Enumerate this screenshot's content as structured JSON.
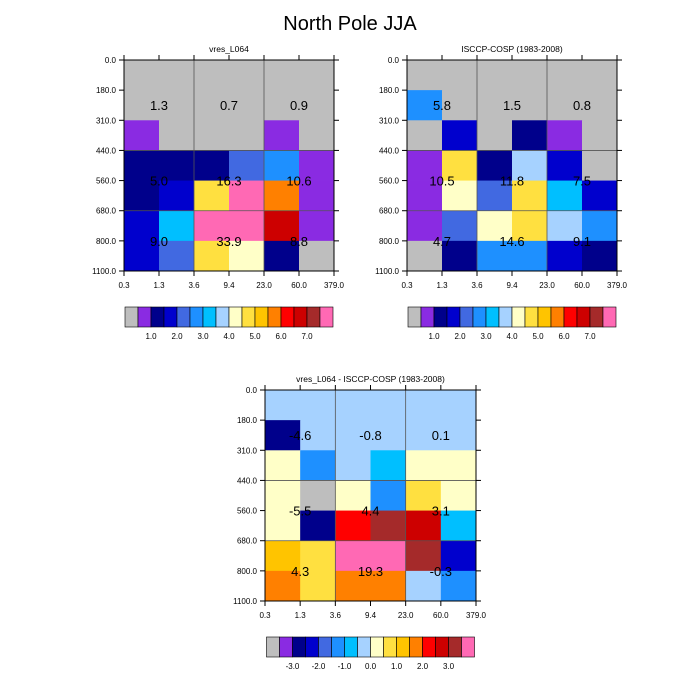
{
  "figure_title": "North Pole JJA",
  "x_ticks": [
    "0.3",
    "1.3",
    "3.6",
    "9.4",
    "23.0",
    "60.0",
    "379.0"
  ],
  "y_ticks": [
    "0.0",
    "180.0",
    "310.0",
    "440.0",
    "560.0",
    "680.0",
    "800.0",
    "1100.0"
  ],
  "palette_abs": [
    "#bebebe",
    "#8a2be2",
    "#00008b",
    "#0000cd",
    "#4169e1",
    "#1e90ff",
    "#00bfff",
    "#a6d2ff",
    "#ffffc8",
    "#ffe040",
    "#ffc400",
    "#ff8000",
    "#ff0000",
    "#cd0000",
    "#a52a2a",
    "#ff69b4"
  ],
  "palette_diff": [
    "#bebebe",
    "#8a2be2",
    "#00008b",
    "#0000cd",
    "#4169e1",
    "#1e90ff",
    "#00bfff",
    "#a6d2ff",
    "#ffffc8",
    "#ffe040",
    "#ffc400",
    "#ff8000",
    "#ff0000",
    "#cd0000",
    "#a52a2a",
    "#ff69b4"
  ],
  "legend_abs_labels": [
    "1.0",
    "2.0",
    "3.0",
    "4.0",
    "5.0",
    "6.0",
    "7.0"
  ],
  "legend_diff_labels": [
    "-3.0",
    "-2.0",
    "-1.0",
    "0.0",
    "1.0",
    "2.0",
    "3.0"
  ],
  "chart_data": [
    {
      "type": "heatmap",
      "title": "vres_L064",
      "xlabel": "",
      "ylabel": "",
      "x_bins": [
        "0.3",
        "1.3",
        "3.6",
        "9.4",
        "23.0",
        "60.0",
        "379.0"
      ],
      "y_bins": [
        "0.0",
        "180.0",
        "310.0",
        "440.0",
        "560.0",
        "680.0",
        "800.0",
        "1100.0"
      ],
      "cells": [
        [
          "#bebebe",
          "#bebebe",
          "#bebebe",
          "#bebebe",
          "#bebebe",
          "#bebebe"
        ],
        [
          "#bebebe",
          "#bebebe",
          "#bebebe",
          "#bebebe",
          "#bebebe",
          "#bebebe"
        ],
        [
          "#8a2be2",
          "#bebebe",
          "#bebebe",
          "#bebebe",
          "#8a2be2",
          "#bebebe"
        ],
        [
          "#00008b",
          "#00008b",
          "#00008b",
          "#4169e1",
          "#1e90ff",
          "#8a2be2"
        ],
        [
          "#00008b",
          "#0000cd",
          "#ffe040",
          "#ff69b4",
          "#ff8000",
          "#8a2be2"
        ],
        [
          "#0000cd",
          "#00bfff",
          "#ff69b4",
          "#ff69b4",
          "#cd0000",
          "#8a2be2"
        ],
        [
          "#0000cd",
          "#4169e1",
          "#ffe040",
          "#ffffc8",
          "#00008b",
          "#bebebe"
        ]
      ],
      "group_values": [
        [
          "1.3",
          "0.7",
          "0.9"
        ],
        [
          "5.0",
          "16.3",
          "10.6"
        ],
        [
          "9.0",
          "33.9",
          "8.8"
        ]
      ]
    },
    {
      "type": "heatmap",
      "title": "ISCCP-COSP (1983-2008)",
      "xlabel": "",
      "ylabel": "",
      "x_bins": [
        "0.3",
        "1.3",
        "3.6",
        "9.4",
        "23.0",
        "60.0",
        "379.0"
      ],
      "y_bins": [
        "0.0",
        "180.0",
        "310.0",
        "440.0",
        "560.0",
        "680.0",
        "800.0",
        "1100.0"
      ],
      "cells": [
        [
          "#bebebe",
          "#bebebe",
          "#bebebe",
          "#bebebe",
          "#bebebe",
          "#bebebe"
        ],
        [
          "#1e90ff",
          "#bebebe",
          "#bebebe",
          "#bebebe",
          "#bebebe",
          "#bebebe"
        ],
        [
          "#bebebe",
          "#0000cd",
          "#bebebe",
          "#00008b",
          "#8a2be2",
          "#bebebe"
        ],
        [
          "#8a2be2",
          "#ffe040",
          "#00008b",
          "#a6d2ff",
          "#0000cd",
          "#bebebe"
        ],
        [
          "#8a2be2",
          "#ffffc8",
          "#4169e1",
          "#ffe040",
          "#00bfff",
          "#0000cd"
        ],
        [
          "#8a2be2",
          "#4169e1",
          "#ffffc8",
          "#ffe040",
          "#a6d2ff",
          "#1e90ff"
        ],
        [
          "#bebebe",
          "#00008b",
          "#1e90ff",
          "#1e90ff",
          "#0000cd",
          "#00008b"
        ]
      ],
      "group_values": [
        [
          "5.8",
          "1.5",
          "0.8"
        ],
        [
          "10.5",
          "11.8",
          "7.5"
        ],
        [
          "4.7",
          "14.6",
          "9.1"
        ]
      ]
    },
    {
      "type": "heatmap",
      "title": "vres_L064 - ISCCP-COSP (1983-2008)",
      "xlabel": "",
      "ylabel": "",
      "x_bins": [
        "0.3",
        "1.3",
        "3.6",
        "9.4",
        "23.0",
        "60.0",
        "379.0"
      ],
      "y_bins": [
        "0.0",
        "180.0",
        "310.0",
        "440.0",
        "560.0",
        "680.0",
        "800.0",
        "1100.0"
      ],
      "cells": [
        [
          "#a6d2ff",
          "#a6d2ff",
          "#a6d2ff",
          "#a6d2ff",
          "#a6d2ff",
          "#a6d2ff"
        ],
        [
          "#00008b",
          "#a6d2ff",
          "#a6d2ff",
          "#a6d2ff",
          "#a6d2ff",
          "#a6d2ff"
        ],
        [
          "#ffffc8",
          "#1e90ff",
          "#a6d2ff",
          "#00bfff",
          "#ffffc8",
          "#ffffc8"
        ],
        [
          "#ffffc8",
          "#bebebe",
          "#ffffc8",
          "#1e90ff",
          "#ffe040",
          "#ffffc8"
        ],
        [
          "#ffffc8",
          "#00008b",
          "#ff0000",
          "#a52a2a",
          "#cd0000",
          "#00bfff"
        ],
        [
          "#ffc400",
          "#ffe040",
          "#ff69b4",
          "#ff69b4",
          "#a52a2a",
          "#0000cd"
        ],
        [
          "#ff8000",
          "#ffe040",
          "#ff8000",
          "#ff8000",
          "#a6d2ff",
          "#1e90ff"
        ]
      ],
      "group_values": [
        [
          "-4.6",
          "-0.8",
          "0.1"
        ],
        [
          "-5.5",
          "4.4",
          "3.1"
        ],
        [
          "4.3",
          "19.3",
          "-0.3"
        ]
      ]
    }
  ]
}
